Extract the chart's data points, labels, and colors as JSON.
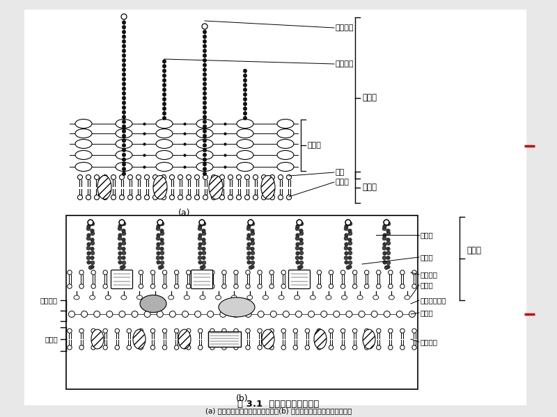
{
  "title": "图 3.1  革兰菌细胞壁结构图",
  "subtitle": "(a) 革兰阳性菌细胞壁结构模式图；(b) 革兰阴性菌细胞膜壁结构模式图",
  "bg_color": "#e8e8e8",
  "label_a": "(a)",
  "label_b": "(b)"
}
